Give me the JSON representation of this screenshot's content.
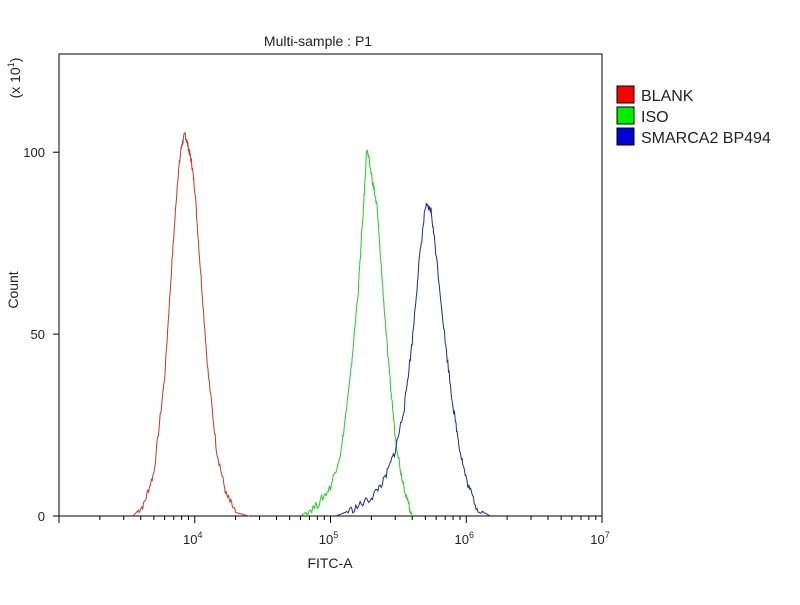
{
  "chart_data": {
    "type": "line",
    "title": "Multi-sample : P1",
    "xlabel": "FITC-A",
    "ylabel": "Count",
    "y_multiplier_label": "(x 10",
    "y_multiplier_exp": "1",
    "x_scale": "log",
    "xlim": [
      1000,
      10000000
    ],
    "ylim": [
      0,
      127
    ],
    "x_ticks": [
      {
        "value": 10000,
        "base": "10",
        "exp": "4"
      },
      {
        "value": 100000,
        "base": "10",
        "exp": "5"
      },
      {
        "value": 1000000,
        "base": "10",
        "exp": "6"
      },
      {
        "value": 10000000,
        "base": "10",
        "exp": "7"
      }
    ],
    "y_ticks": [
      {
        "value": 0,
        "label": "0"
      },
      {
        "value": 50,
        "label": "50"
      },
      {
        "value": 100,
        "label": "100"
      }
    ],
    "grid": false,
    "legend_position": "right",
    "series": [
      {
        "name": "BLANK",
        "color": "#c0392b",
        "legend_color": "#ff0000",
        "x": [
          3500,
          4200,
          5000,
          6000,
          6800,
          7500,
          8000,
          8500,
          9000,
          9500,
          10000,
          11000,
          12500,
          14500,
          17000,
          20000,
          25000
        ],
        "y": [
          0,
          3,
          12,
          38,
          70,
          93,
          102,
          105,
          101,
          97,
          90,
          68,
          40,
          18,
          6,
          1,
          0
        ]
      },
      {
        "name": "ISO",
        "color": "#22cc22",
        "legend_color": "#00ee00",
        "x": [
          60000,
          80000,
          100000,
          120000,
          140000,
          160000,
          175000,
          185000,
          200000,
          220000,
          240000,
          270000,
          300000,
          330000,
          370000,
          400000
        ],
        "y": [
          0,
          3,
          8,
          18,
          38,
          62,
          85,
          101,
          94,
          85,
          65,
          40,
          22,
          12,
          4,
          0
        ]
      },
      {
        "name": "SMARCA2 BP494",
        "color": "#1a2a9a",
        "legend_color": "#0000dd",
        "x": [
          110000,
          150000,
          200000,
          250000,
          300000,
          350000,
          400000,
          450000,
          500000,
          550000,
          600000,
          700000,
          800000,
          900000,
          1000000,
          1200000,
          1500000
        ],
        "y": [
          0,
          2,
          5,
          10,
          18,
          30,
          48,
          70,
          85,
          84,
          72,
          48,
          30,
          18,
          10,
          2,
          0
        ]
      }
    ]
  }
}
